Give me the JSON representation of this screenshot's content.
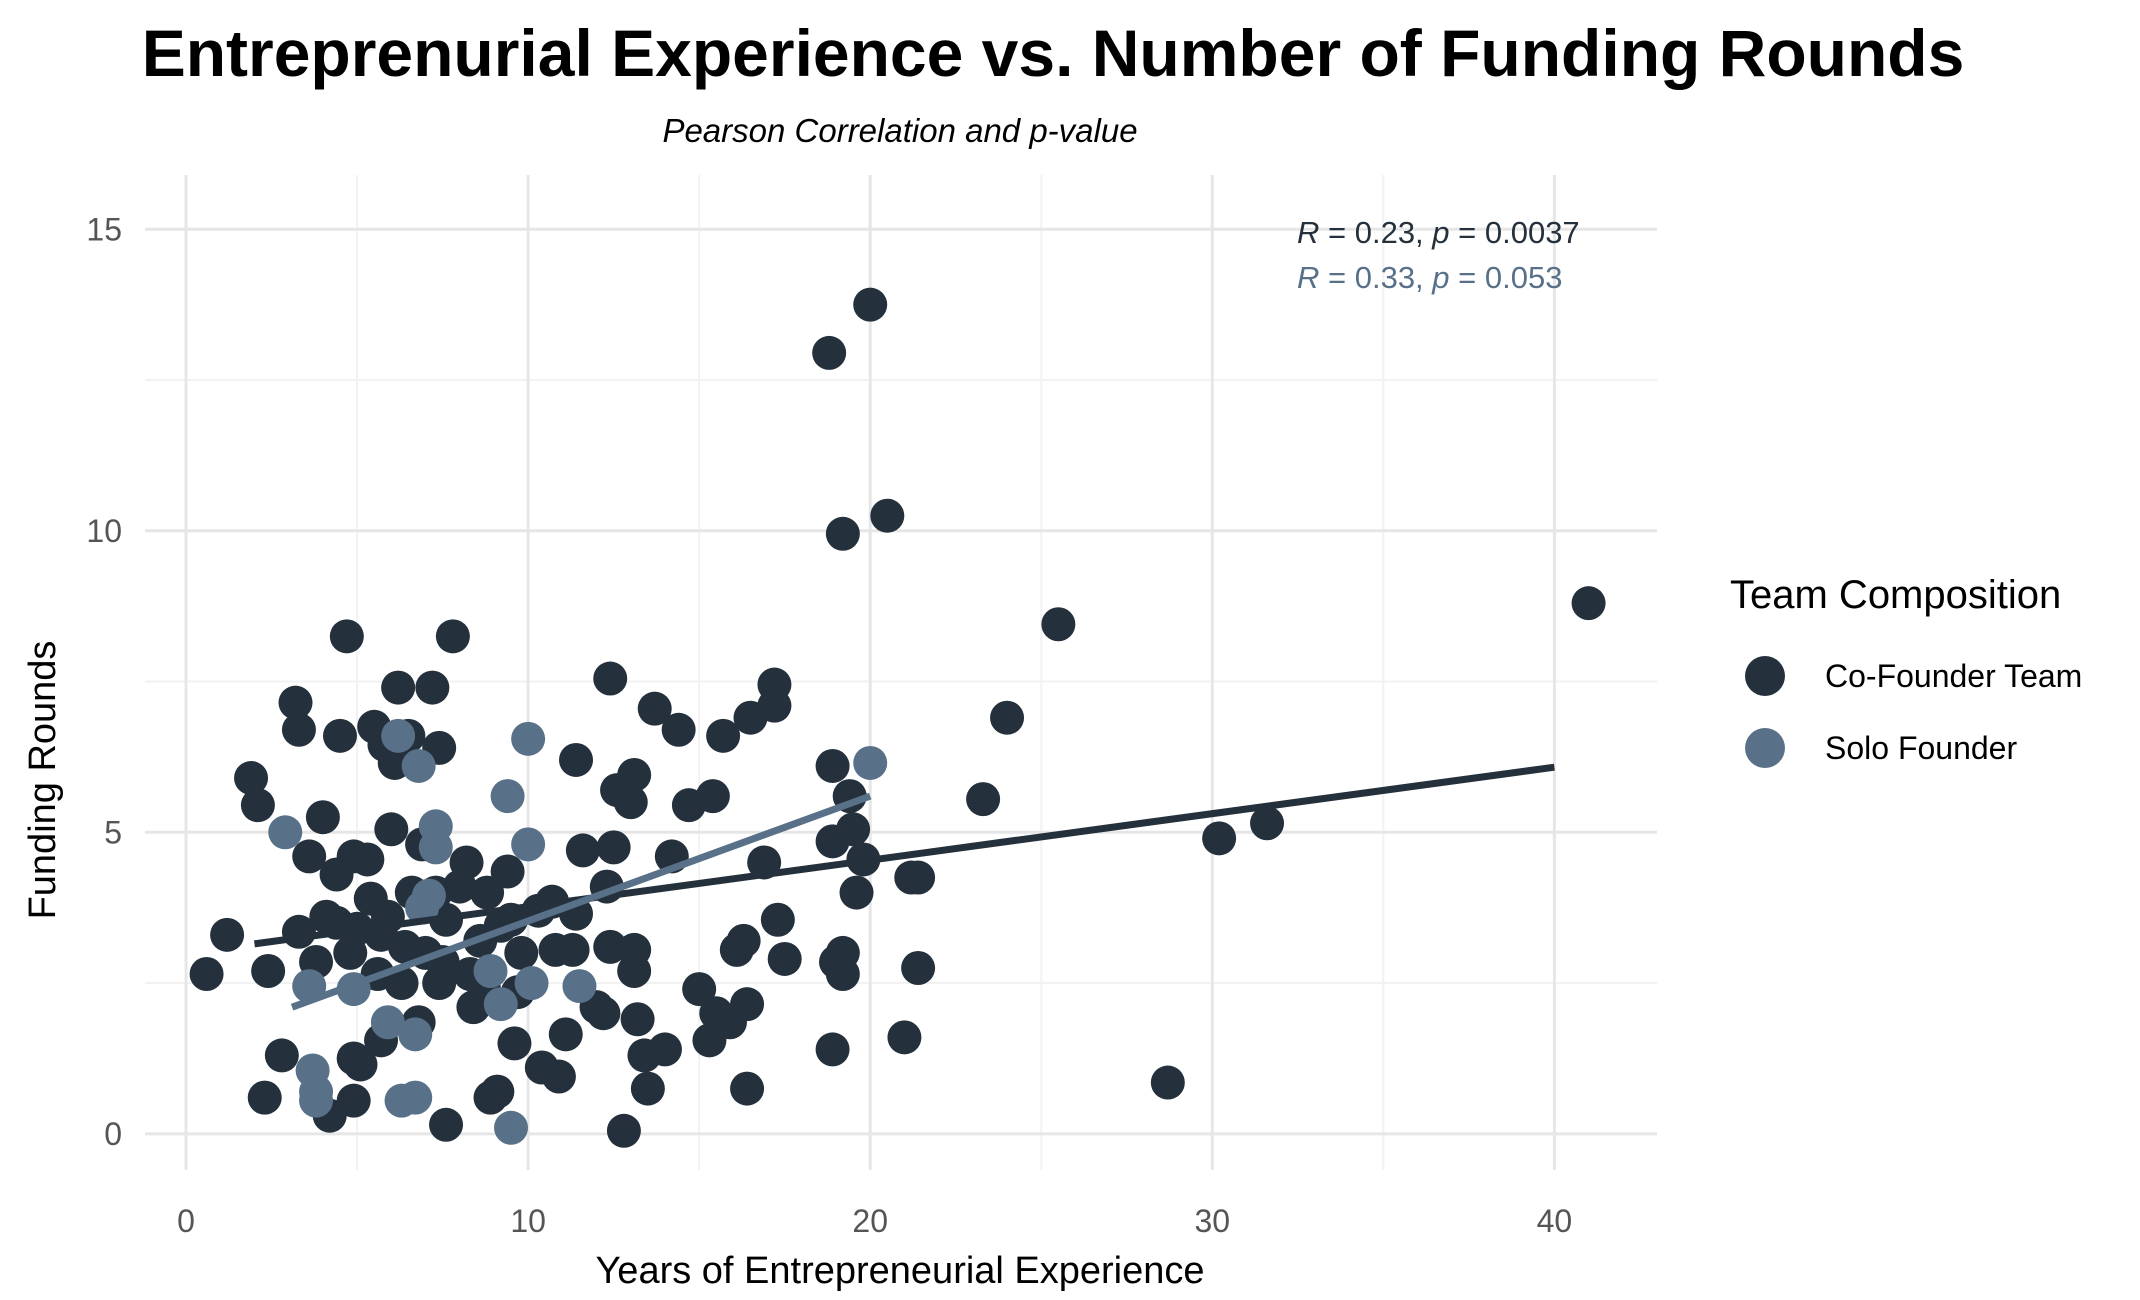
{
  "chart_data": {
    "type": "scatter",
    "title": "Entreprenurial Experience vs. Number of Funding Rounds",
    "subtitle": "Pearson Correlation and p-value",
    "xlabel": "Years of Entrepreneurial Experience",
    "ylabel": "Funding Rounds",
    "xlim": [
      -1.2,
      43
    ],
    "ylim": [
      -0.6,
      15.9
    ],
    "xticks": [
      0,
      10,
      20,
      30,
      40
    ],
    "yticks": [
      0,
      5,
      10,
      15
    ],
    "grid": true,
    "legend": {
      "title": "Team Composition",
      "placement": "right"
    },
    "series": [
      {
        "name": "Co-Founder Team",
        "color": "#24303b",
        "stat": {
          "r_label": "R",
          "r_value": " = 0.23, ",
          "p_label": "p",
          "p_value": " = 0.0037"
        },
        "fit": {
          "x": [
            2.0,
            40.0
          ],
          "y": [
            3.15,
            6.08
          ]
        },
        "points": [
          [
            0.6,
            2.65
          ],
          [
            1.2,
            3.3
          ],
          [
            1.9,
            5.9
          ],
          [
            2.1,
            5.45
          ],
          [
            2.4,
            2.7
          ],
          [
            2.3,
            0.6
          ],
          [
            2.8,
            1.3
          ],
          [
            3.2,
            7.15
          ],
          [
            3.3,
            6.7
          ],
          [
            3.3,
            3.35
          ],
          [
            3.6,
            4.6
          ],
          [
            3.8,
            2.85
          ],
          [
            4.0,
            5.25
          ],
          [
            4.1,
            3.6
          ],
          [
            4.2,
            0.3
          ],
          [
            4.4,
            4.3
          ],
          [
            4.4,
            3.5
          ],
          [
            4.5,
            6.6
          ],
          [
            4.7,
            8.25
          ],
          [
            4.8,
            3.0
          ],
          [
            4.9,
            4.6
          ],
          [
            4.9,
            1.25
          ],
          [
            4.9,
            0.55
          ],
          [
            5.0,
            3.4
          ],
          [
            5.1,
            1.15
          ],
          [
            5.3,
            4.55
          ],
          [
            5.4,
            3.9
          ],
          [
            5.5,
            6.75
          ],
          [
            5.6,
            2.65
          ],
          [
            5.7,
            3.3
          ],
          [
            5.7,
            1.55
          ],
          [
            5.8,
            6.45
          ],
          [
            5.9,
            3.6
          ],
          [
            6.0,
            5.05
          ],
          [
            6.1,
            6.15
          ],
          [
            6.2,
            7.4
          ],
          [
            6.3,
            2.5
          ],
          [
            6.4,
            3.1
          ],
          [
            6.5,
            6.6
          ],
          [
            6.6,
            4.0
          ],
          [
            6.8,
            1.85
          ],
          [
            6.9,
            4.8
          ],
          [
            7.0,
            3.0
          ],
          [
            7.2,
            7.4
          ],
          [
            7.3,
            4.0
          ],
          [
            7.4,
            2.5
          ],
          [
            7.4,
            6.4
          ],
          [
            7.5,
            2.85
          ],
          [
            7.6,
            3.55
          ],
          [
            7.6,
            0.15
          ],
          [
            7.8,
            8.25
          ],
          [
            8.0,
            4.1
          ],
          [
            8.2,
            4.5
          ],
          [
            8.3,
            2.65
          ],
          [
            8.4,
            2.1
          ],
          [
            8.6,
            3.2
          ],
          [
            8.7,
            2.45
          ],
          [
            8.8,
            4.0
          ],
          [
            8.9,
            0.6
          ],
          [
            9.1,
            0.7
          ],
          [
            9.2,
            3.45
          ],
          [
            9.4,
            4.35
          ],
          [
            9.5,
            3.55
          ],
          [
            9.6,
            1.5
          ],
          [
            9.7,
            2.35
          ],
          [
            9.8,
            3.0
          ],
          [
            10.3,
            3.7
          ],
          [
            10.4,
            1.1
          ],
          [
            10.7,
            3.85
          ],
          [
            10.8,
            3.05
          ],
          [
            10.9,
            0.95
          ],
          [
            11.1,
            1.65
          ],
          [
            11.3,
            3.05
          ],
          [
            11.4,
            3.65
          ],
          [
            11.4,
            6.2
          ],
          [
            11.6,
            4.7
          ],
          [
            12.0,
            2.1
          ],
          [
            12.2,
            2.0
          ],
          [
            12.3,
            4.1
          ],
          [
            12.4,
            7.55
          ],
          [
            12.4,
            3.1
          ],
          [
            12.5,
            4.75
          ],
          [
            12.6,
            5.7
          ],
          [
            12.8,
            0.05
          ],
          [
            13.0,
            5.5
          ],
          [
            13.1,
            5.95
          ],
          [
            13.1,
            3.05
          ],
          [
            13.1,
            2.7
          ],
          [
            13.2,
            1.9
          ],
          [
            13.4,
            1.3
          ],
          [
            13.5,
            0.75
          ],
          [
            13.7,
            7.05
          ],
          [
            14.0,
            1.4
          ],
          [
            14.2,
            4.6
          ],
          [
            14.4,
            6.7
          ],
          [
            14.7,
            5.45
          ],
          [
            15.0,
            2.4
          ],
          [
            15.3,
            1.55
          ],
          [
            15.4,
            5.6
          ],
          [
            15.5,
            2.0
          ],
          [
            15.7,
            6.6
          ],
          [
            15.9,
            1.85
          ],
          [
            16.1,
            3.05
          ],
          [
            16.3,
            3.2
          ],
          [
            16.4,
            0.75
          ],
          [
            16.4,
            2.15
          ],
          [
            16.5,
            6.9
          ],
          [
            16.9,
            4.5
          ],
          [
            17.2,
            7.45
          ],
          [
            17.2,
            7.1
          ],
          [
            17.3,
            3.55
          ],
          [
            17.5,
            2.9
          ],
          [
            18.8,
            12.95
          ],
          [
            18.9,
            1.4
          ],
          [
            18.9,
            6.1
          ],
          [
            18.9,
            4.85
          ],
          [
            19.0,
            2.85
          ],
          [
            19.2,
            9.95
          ],
          [
            19.2,
            3.0
          ],
          [
            19.2,
            2.65
          ],
          [
            19.4,
            5.6
          ],
          [
            19.5,
            5.05
          ],
          [
            19.6,
            4.0
          ],
          [
            19.8,
            4.55
          ],
          [
            20.0,
            13.75
          ],
          [
            20.5,
            10.25
          ],
          [
            21.0,
            1.6
          ],
          [
            21.2,
            4.25
          ],
          [
            21.4,
            4.25
          ],
          [
            21.4,
            2.75
          ],
          [
            23.3,
            5.55
          ],
          [
            24.0,
            6.9
          ],
          [
            25.5,
            8.45
          ],
          [
            28.7,
            0.85
          ],
          [
            30.2,
            4.9
          ],
          [
            31.6,
            5.15
          ],
          [
            41.0,
            8.8
          ]
        ]
      },
      {
        "name": "Solo Founder",
        "color": "#587189",
        "stat": {
          "r_label": "R",
          "r_value": " = 0.33, ",
          "p_label": "p",
          "p_value": " = 0.053"
        },
        "fit": {
          "x": [
            3.1,
            20.0
          ],
          "y": [
            2.1,
            5.6
          ]
        },
        "points": [
          [
            2.9,
            5.0
          ],
          [
            3.6,
            2.45
          ],
          [
            3.7,
            1.05
          ],
          [
            3.8,
            0.7
          ],
          [
            3.8,
            0.55
          ],
          [
            4.9,
            2.4
          ],
          [
            5.9,
            1.85
          ],
          [
            6.2,
            6.6
          ],
          [
            6.3,
            0.55
          ],
          [
            6.7,
            0.6
          ],
          [
            6.7,
            1.65
          ],
          [
            6.8,
            6.1
          ],
          [
            6.9,
            3.75
          ],
          [
            7.1,
            3.95
          ],
          [
            7.3,
            5.1
          ],
          [
            7.3,
            4.75
          ],
          [
            8.9,
            2.7
          ],
          [
            9.2,
            2.15
          ],
          [
            9.4,
            5.6
          ],
          [
            9.5,
            0.1
          ],
          [
            10.0,
            6.55
          ],
          [
            10.1,
            2.5
          ],
          [
            10.0,
            4.8
          ],
          [
            11.5,
            2.45
          ],
          [
            20.0,
            6.15
          ]
        ]
      }
    ]
  }
}
